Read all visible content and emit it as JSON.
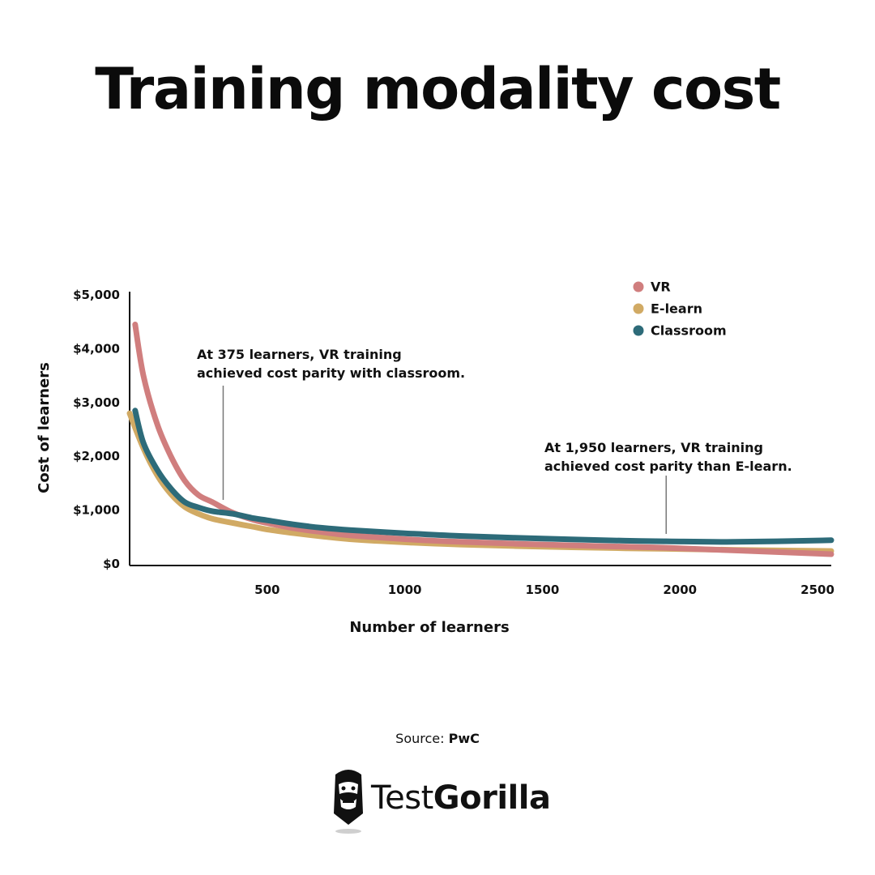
{
  "title": "Training modality cost",
  "source": {
    "label": "Source:",
    "name": "PwC"
  },
  "brand": {
    "name_light": "Test",
    "name_bold": "Gorilla",
    "icon": "gorilla-logo-icon"
  },
  "colors": {
    "vr": "#d07e7e",
    "elearn": "#d1aa64",
    "classroom": "#2d6b79",
    "axis": "#111111",
    "annotation_line": "#777777"
  },
  "chart_data": {
    "type": "line",
    "xlabel": "Number of learners",
    "ylabel": "Cost of learners",
    "xlim": [
      0,
      2550
    ],
    "ylim": [
      0,
      5000
    ],
    "x_ticks": [
      500,
      1000,
      1500,
      2000,
      2500
    ],
    "x_tick_labels": [
      "500",
      "1000",
      "1500",
      "2000",
      "2500"
    ],
    "y_ticks": [
      0,
      1000,
      2000,
      3000,
      4000,
      5000
    ],
    "y_tick_labels": [
      "$0",
      "$1,000",
      "$2,000",
      "$3,000",
      "$4,000",
      "$5,000"
    ],
    "grid": false,
    "legend_position": "top-right",
    "series": [
      {
        "name": "VR",
        "color": "#d07e7e",
        "x": [
          20,
          50,
          100,
          150,
          200,
          250,
          300,
          375,
          450,
          500,
          600,
          700,
          800,
          1000,
          1200,
          1500,
          1800,
          1950,
          2200,
          2550
        ],
        "y": [
          4450,
          3500,
          2600,
          2000,
          1550,
          1280,
          1150,
          950,
          820,
          760,
          660,
          590,
          530,
          460,
          410,
          360,
          320,
          300,
          250,
          180
        ]
      },
      {
        "name": "E-learn",
        "color": "#d1aa64",
        "x": [
          0,
          50,
          100,
          150,
          200,
          250,
          300,
          375,
          450,
          500,
          600,
          700,
          800,
          1000,
          1200,
          1500,
          1800,
          1950,
          2200,
          2550
        ],
        "y": [
          2800,
          2150,
          1650,
          1300,
          1060,
          930,
          840,
          760,
          690,
          640,
          570,
          510,
          460,
          400,
          360,
          320,
          290,
          280,
          260,
          240
        ]
      },
      {
        "name": "Classroom",
        "color": "#2d6b79",
        "x": [
          20,
          50,
          100,
          150,
          200,
          250,
          300,
          375,
          450,
          500,
          600,
          700,
          800,
          1000,
          1200,
          1500,
          1800,
          1950,
          2200,
          2550
        ],
        "y": [
          2850,
          2250,
          1750,
          1400,
          1150,
          1050,
          980,
          930,
          850,
          810,
          730,
          670,
          630,
          570,
          520,
          470,
          430,
          420,
          410,
          440
        ]
      }
    ],
    "annotations": [
      {
        "x": 340,
        "lines": [
          "At 375 learners, VR training",
          "achieved cost parity with classroom."
        ]
      },
      {
        "x": 1950,
        "lines": [
          "At 1,950 learners, VR training",
          "achieved cost parity than E-learn."
        ]
      }
    ]
  }
}
